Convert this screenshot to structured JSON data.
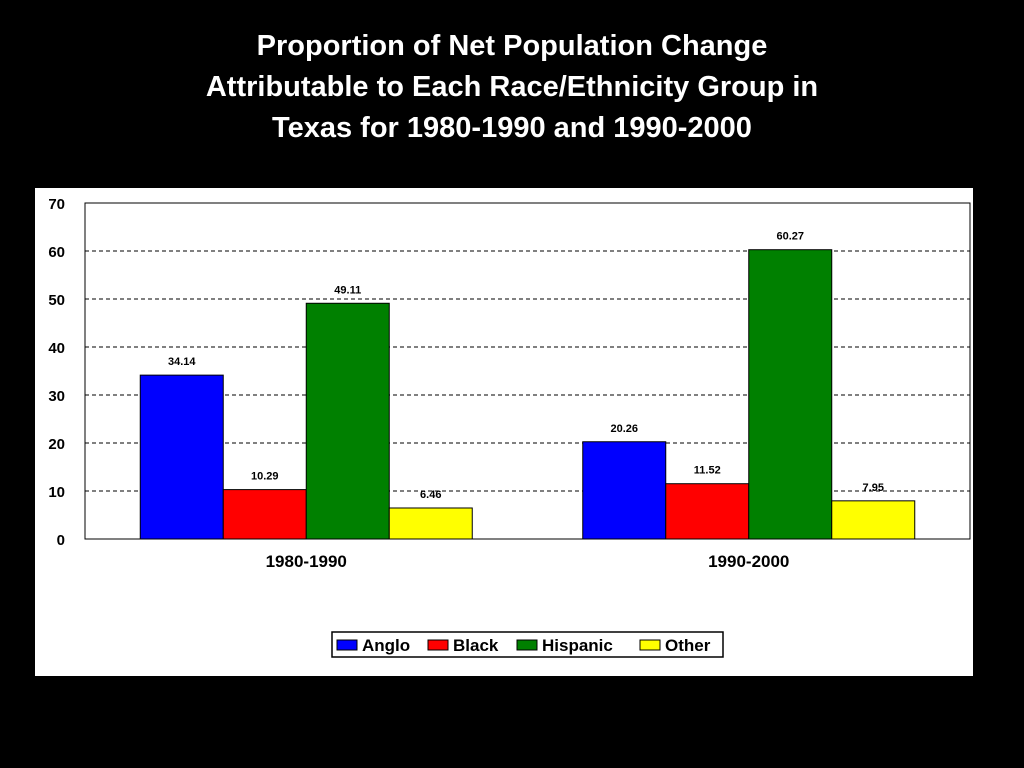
{
  "title": {
    "lines": [
      "Proportion of Net Population Change",
      "Attributable to Each Race/Ethnicity Group in",
      "Texas for 1980-1990 and 1990-2000"
    ]
  },
  "colors": {
    "background": "#000000",
    "panel": "#ffffff",
    "Anglo": "#0000ff",
    "Black": "#ff0000",
    "Hispanic": "#008000",
    "Other": "#ffff00"
  },
  "chart_data": {
    "type": "bar",
    "title": "Proportion of Net Population Change Attributable to Each Race/Ethnicity Group in Texas for 1980-1990 and 1990-2000",
    "categories": [
      "1980-1990",
      "1990-2000"
    ],
    "series": [
      {
        "name": "Anglo",
        "values": [
          34.14,
          20.26
        ],
        "labels": [
          "34.14",
          "20.26"
        ]
      },
      {
        "name": "Black",
        "values": [
          10.29,
          11.52
        ],
        "labels": [
          "10.29",
          "11.52"
        ]
      },
      {
        "name": "Hispanic",
        "values": [
          49.11,
          60.27
        ],
        "labels": [
          "49.11",
          "60.27"
        ]
      },
      {
        "name": "Other",
        "values": [
          6.46,
          7.95
        ],
        "labels": [
          "6.46",
          "7.95"
        ]
      }
    ],
    "ylim": [
      0,
      70
    ],
    "yticks": [
      "0",
      "10",
      "20",
      "30",
      "40",
      "50",
      "60",
      "70"
    ],
    "xlabel": "",
    "ylabel": "",
    "grid": "dashed horizontal",
    "legend_position": "bottom"
  }
}
